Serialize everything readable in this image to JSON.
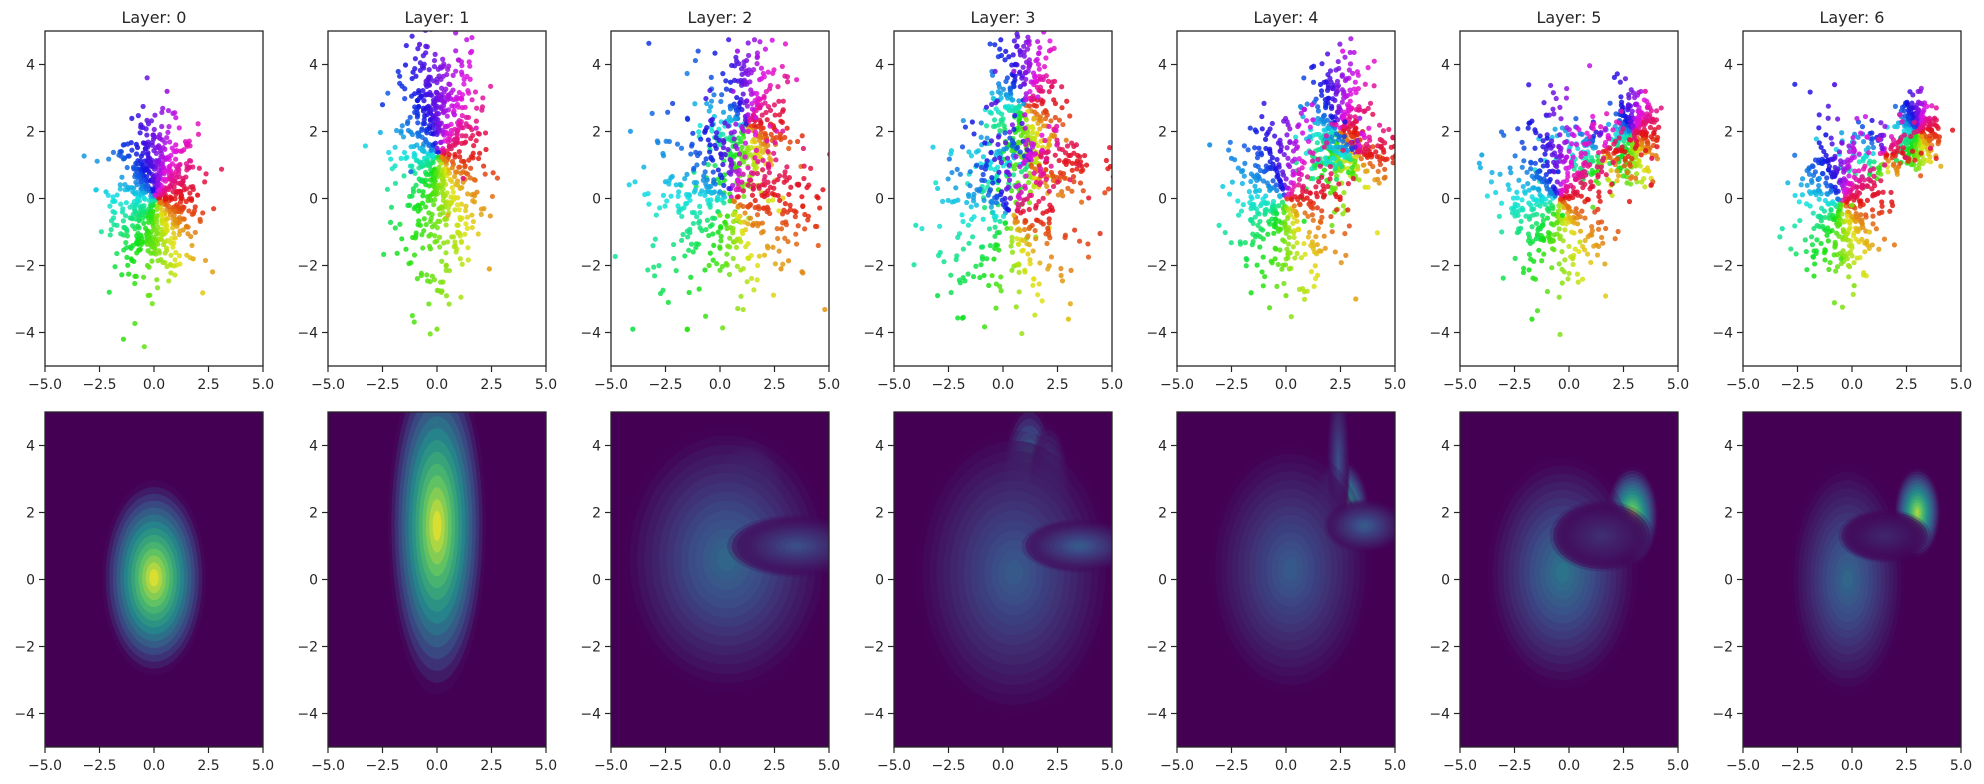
{
  "chart_data": [
    {
      "type": "scatter",
      "title": "Layer: 0",
      "xlim": [
        -5,
        5
      ],
      "ylim": [
        -5,
        5
      ],
      "xticks": [
        "−5.0",
        "−2.5",
        "0.0",
        "2.5",
        "5.0"
      ],
      "yticks": [
        "4",
        "2",
        "0",
        "−2",
        "−4"
      ],
      "points": [
        [
          0.05,
          0.1
        ],
        [
          0.5,
          0.8
        ],
        [
          -0.6,
          0.5
        ],
        [
          1.2,
          -0.3
        ],
        [
          -1.0,
          -0.6
        ],
        [
          0.3,
          -1.2
        ],
        [
          -0.3,
          -2.0
        ],
        [
          1.0,
          1.6
        ],
        [
          -1.5,
          1.4
        ],
        [
          0.6,
          3.2
        ],
        [
          -1.4,
          -4.2
        ],
        [
          2.0,
          0.1
        ],
        [
          -2.2,
          0.2
        ],
        [
          1.8,
          -1.8
        ],
        [
          -0.6,
          2.2
        ]
      ],
      "grid": false,
      "legend": "none"
    },
    {
      "type": "scatter",
      "title": "Layer: 1",
      "xlim": [
        -5,
        5
      ],
      "ylim": [
        -5,
        5
      ],
      "xticks": [
        "−5.0",
        "−2.5",
        "0.0",
        "2.5",
        "5.0"
      ],
      "yticks": [
        "4",
        "2",
        "0",
        "−2",
        "−4"
      ],
      "points": [
        [
          0.0,
          1.5
        ],
        [
          -0.5,
          3.5
        ],
        [
          0.8,
          2.5
        ],
        [
          -1.2,
          0.8
        ],
        [
          0.5,
          -0.5
        ],
        [
          1.2,
          0.6
        ],
        [
          -0.3,
          -1.5
        ],
        [
          0.2,
          -2.8
        ],
        [
          -2.5,
          2.8
        ],
        [
          1.8,
          2.1
        ],
        [
          0.0,
          -3.9
        ],
        [
          -0.8,
          4.6
        ],
        [
          2.4,
          -2.1
        ]
      ],
      "grid": false,
      "legend": "none"
    },
    {
      "type": "scatter",
      "title": "Layer: 2",
      "xlim": [
        -5,
        5
      ],
      "ylim": [
        -5,
        5
      ],
      "xticks": [
        "−5.0",
        "−2.5",
        "0.0",
        "2.5",
        "5.0"
      ],
      "yticks": [
        "4",
        "2",
        "0",
        "−2",
        "−4"
      ],
      "points": [
        [
          1.3,
          2.0
        ],
        [
          0.6,
          3.2
        ],
        [
          2.2,
          1.4
        ],
        [
          -1.2,
          0.9
        ],
        [
          -2.5,
          0.5
        ],
        [
          0.0,
          -0.5
        ],
        [
          1.5,
          -0.8
        ],
        [
          -0.5,
          -2.0
        ],
        [
          3.6,
          0.4
        ],
        [
          -4.0,
          -3.9
        ],
        [
          0.8,
          4.4
        ],
        [
          -1.5,
          -3.9
        ],
        [
          2.8,
          -2.1
        ]
      ],
      "grid": false,
      "legend": "none"
    },
    {
      "type": "scatter",
      "title": "Layer: 3",
      "xlim": [
        -5,
        5
      ],
      "ylim": [
        -5,
        5
      ],
      "xticks": [
        "−5.0",
        "−2.5",
        "0.0",
        "2.5",
        "5.0"
      ],
      "yticks": [
        "4",
        "2",
        "0",
        "−2",
        "−4"
      ],
      "points": [
        [
          1.0,
          2.5
        ],
        [
          0.5,
          3.8
        ],
        [
          2.0,
          1.2
        ],
        [
          -1.5,
          0.8
        ],
        [
          -3.0,
          0.3
        ],
        [
          0.5,
          -0.5
        ],
        [
          1.5,
          -1.2
        ],
        [
          -0.5,
          -2.3
        ],
        [
          3.5,
          1.0
        ],
        [
          -4.0,
          -0.8
        ],
        [
          3.0,
          -3.6
        ],
        [
          -3.0,
          -2.9
        ],
        [
          1.2,
          4.6
        ]
      ],
      "grid": false,
      "legend": "none"
    },
    {
      "type": "scatter",
      "title": "Layer: 4",
      "xlim": [
        -5,
        5
      ],
      "ylim": [
        -5,
        5
      ],
      "xticks": [
        "−5.0",
        "−2.5",
        "0.0",
        "2.5",
        "5.0"
      ],
      "yticks": [
        "4",
        "2",
        "0",
        "−2",
        "−4"
      ],
      "points": [
        [
          2.3,
          2.2
        ],
        [
          3.3,
          1.4
        ],
        [
          1.2,
          2.8
        ],
        [
          -1.0,
          0.8
        ],
        [
          -2.5,
          1.2
        ],
        [
          0.5,
          -0.5
        ],
        [
          1.5,
          0.5
        ],
        [
          -0.5,
          -1.8
        ],
        [
          -3.5,
          1.6
        ],
        [
          0.0,
          -2.9
        ],
        [
          3.2,
          -3.0
        ],
        [
          2.6,
          4.4
        ]
      ],
      "grid": false,
      "legend": "none"
    },
    {
      "type": "scatter",
      "title": "Layer: 5",
      "xlim": [
        -5,
        5
      ],
      "ylim": [
        -5,
        5
      ],
      "xticks": [
        "−5.0",
        "−2.5",
        "0.0",
        "2.5",
        "5.0"
      ],
      "yticks": [
        "4",
        "2",
        "0",
        "−2",
        "−4"
      ],
      "points": [
        [
          3.0,
          1.8
        ],
        [
          2.4,
          2.6
        ],
        [
          3.8,
          1.2
        ],
        [
          -1.0,
          1.8
        ],
        [
          -0.5,
          0.8
        ],
        [
          -0.3,
          -0.5
        ],
        [
          0.5,
          -1.3
        ],
        [
          -1.5,
          -1.2
        ],
        [
          1.5,
          0.8
        ],
        [
          -4.0,
          1.3
        ],
        [
          -1.7,
          -3.6
        ],
        [
          3.5,
          3.2
        ]
      ],
      "grid": false,
      "legend": "none"
    },
    {
      "type": "scatter",
      "title": "Layer: 6",
      "xlim": [
        -5,
        5
      ],
      "ylim": [
        -5,
        5
      ],
      "xticks": [
        "−5.0",
        "−2.5",
        "0.0",
        "2.5",
        "5.0"
      ],
      "yticks": [
        "4",
        "2",
        "0",
        "−2",
        "−4"
      ],
      "points": [
        [
          3.0,
          2.0
        ],
        [
          2.2,
          2.5
        ],
        [
          3.6,
          1.5
        ],
        [
          -1.2,
          1.9
        ],
        [
          -1.5,
          0.6
        ],
        [
          0.0,
          -0.2
        ],
        [
          0.8,
          -1.0
        ],
        [
          -0.5,
          -1.8
        ],
        [
          1.5,
          1.0
        ],
        [
          -3.2,
          -0.9
        ],
        [
          -0.8,
          3.4
        ],
        [
          0.1,
          -2.6
        ]
      ],
      "grid": false,
      "legend": "none"
    },
    {
      "type": "heatmap",
      "title": "",
      "xlim": [
        -5,
        5
      ],
      "ylim": [
        -5,
        5
      ],
      "xticks": [
        "−5.0",
        "−2.5",
        "0.0",
        "2.5",
        "5.0"
      ],
      "yticks": [
        "4",
        "2",
        "0",
        "−2",
        "−4"
      ],
      "colormap": "viridis",
      "modes": [
        {
          "x": 0.0,
          "y": 0.05,
          "density": 1.0
        }
      ],
      "grid": false
    },
    {
      "type": "heatmap",
      "title": "",
      "xlim": [
        -5,
        5
      ],
      "ylim": [
        -5,
        5
      ],
      "xticks": [
        "−5.0",
        "−2.5",
        "0.0",
        "2.5",
        "5.0"
      ],
      "yticks": [
        "4",
        "2",
        "0",
        "−2",
        "−4"
      ],
      "colormap": "viridis",
      "modes": [
        {
          "x": 0.0,
          "y": 1.6,
          "density": 1.0
        }
      ],
      "grid": false
    },
    {
      "type": "heatmap",
      "title": "",
      "xlim": [
        -5,
        5
      ],
      "ylim": [
        -5,
        5
      ],
      "xticks": [
        "−5.0",
        "−2.5",
        "0.0",
        "2.5",
        "5.0"
      ],
      "yticks": [
        "4",
        "2",
        "0",
        "−2",
        "−4"
      ],
      "colormap": "viridis",
      "modes": [
        {
          "x": 1.3,
          "y": 2.0,
          "density": 1.0
        },
        {
          "x": 0.0,
          "y": 0.5,
          "density": 0.35
        }
      ],
      "grid": false
    },
    {
      "type": "heatmap",
      "title": "",
      "xlim": [
        -5,
        5
      ],
      "ylim": [
        -5,
        5
      ],
      "xticks": [
        "−5.0",
        "−2.5",
        "0.0",
        "2.5",
        "5.0"
      ],
      "yticks": [
        "4",
        "2",
        "0",
        "−2",
        "−4"
      ],
      "colormap": "viridis",
      "modes": [
        {
          "x": 1.2,
          "y": 2.3,
          "density": 1.0
        },
        {
          "x": 2.0,
          "y": 2.0,
          "density": 0.6
        },
        {
          "x": 0.0,
          "y": 0.3,
          "density": 0.3
        }
      ],
      "grid": false
    },
    {
      "type": "heatmap",
      "title": "",
      "xlim": [
        -5,
        5
      ],
      "ylim": [
        -5,
        5
      ],
      "xticks": [
        "−5.0",
        "−2.5",
        "0.0",
        "2.5",
        "5.0"
      ],
      "yticks": [
        "4",
        "2",
        "0",
        "−2",
        "−4"
      ],
      "colormap": "viridis",
      "modes": [
        {
          "x": 2.5,
          "y": 2.0,
          "density": 1.0
        },
        {
          "x": 0.3,
          "y": 0.3,
          "density": 0.3
        }
      ],
      "grid": false
    },
    {
      "type": "heatmap",
      "title": "",
      "xlim": [
        -5,
        5
      ],
      "ylim": [
        -5,
        5
      ],
      "xticks": [
        "−5.0",
        "−2.5",
        "0.0",
        "2.5",
        "5.0"
      ],
      "yticks": [
        "4",
        "2",
        "0",
        "−2",
        "−4"
      ],
      "colormap": "viridis",
      "modes": [
        {
          "x": 2.9,
          "y": 1.9,
          "density": 1.0
        },
        {
          "x": -0.3,
          "y": 0.2,
          "density": 0.4
        }
      ],
      "grid": false
    },
    {
      "type": "heatmap",
      "title": "",
      "xlim": [
        -5,
        5
      ],
      "ylim": [
        -5,
        5
      ],
      "xticks": [
        "−5.0",
        "−2.5",
        "0.0",
        "2.5",
        "5.0"
      ],
      "yticks": [
        "4",
        "2",
        "0",
        "−2",
        "−4"
      ],
      "colormap": "viridis",
      "modes": [
        {
          "x": 3.0,
          "y": 2.0,
          "density": 1.0
        },
        {
          "x": -0.2,
          "y": 0.0,
          "density": 0.3
        }
      ],
      "grid": false
    }
  ]
}
